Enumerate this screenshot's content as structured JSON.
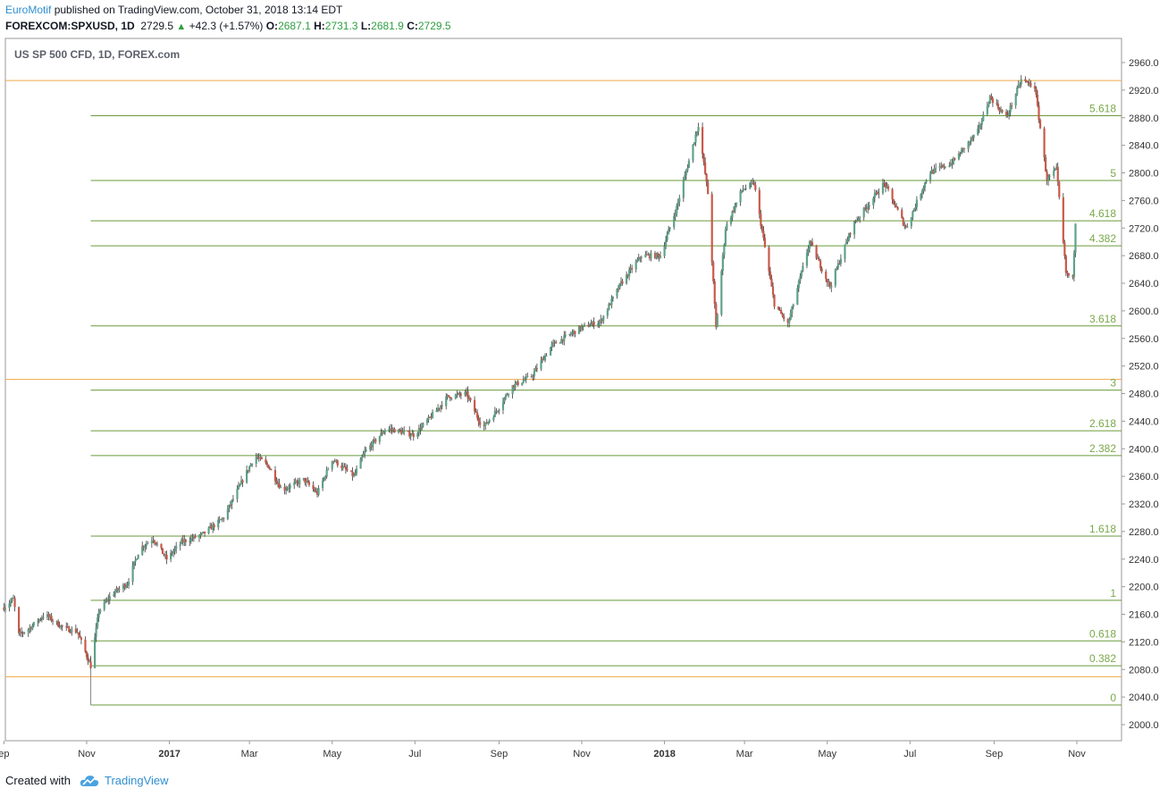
{
  "header": {
    "brand": "EuroMotif",
    "published_text": "published on TradingView.com, October 31, 2018 13:14 EDT"
  },
  "quote": {
    "symbol": "FOREXCOM:SPXUSD, 1D",
    "last": "2729.5",
    "change": "+42.3 (+1.57%)",
    "open_label": "O:",
    "open": "2687.1",
    "high_label": "H:",
    "high": "2731.3",
    "low_label": "L:",
    "low": "2681.9",
    "close_label": "C:",
    "close": "2729.5"
  },
  "footer": {
    "created_with": "Created with",
    "brand": "TradingView",
    "logo_icon": "tradingview-cloud-icon"
  },
  "colors": {
    "up": "#5fa289",
    "down": "#c85a4a",
    "fib": "#6a9a3c",
    "orange": "#f0a848",
    "axis": "#7d7d7d"
  },
  "chart_data": {
    "type": "candlestick",
    "title": "US SP 500 CFD, 1D, FOREX.com",
    "ylim": [
      1985,
      2980
    ],
    "y_ticks": [
      2000,
      2040,
      2080,
      2120,
      2160,
      2200,
      2240,
      2280,
      2320,
      2360,
      2400,
      2440,
      2480,
      2520,
      2560,
      2600,
      2640,
      2680,
      2720,
      2760,
      2800,
      2840,
      2880,
      2920,
      2960
    ],
    "x_ticks": [
      {
        "label": "ep",
        "date": "2016-09-01",
        "bold": false
      },
      {
        "label": "Nov",
        "date": "2016-11-01",
        "bold": false
      },
      {
        "label": "2017",
        "date": "2017-01-01",
        "bold": true
      },
      {
        "label": "Mar",
        "date": "2017-03-01",
        "bold": false
      },
      {
        "label": "May",
        "date": "2017-05-01",
        "bold": false
      },
      {
        "label": "Jul",
        "date": "2017-07-01",
        "bold": false
      },
      {
        "label": "Sep",
        "date": "2017-09-01",
        "bold": false
      },
      {
        "label": "Nov",
        "date": "2017-11-01",
        "bold": false
      },
      {
        "label": "2018",
        "date": "2018-01-01",
        "bold": true
      },
      {
        "label": "Mar",
        "date": "2018-03-01",
        "bold": false
      },
      {
        "label": "May",
        "date": "2018-05-01",
        "bold": false
      },
      {
        "label": "Jul",
        "date": "2018-07-01",
        "bold": false
      },
      {
        "label": "Sep",
        "date": "2018-09-01",
        "bold": false
      },
      {
        "label": "Nov",
        "date": "2018-11-01",
        "bold": false
      }
    ],
    "fib_levels": [
      {
        "label": "0",
        "value": 2028.5
      },
      {
        "label": "0.382",
        "value": 2085.3
      },
      {
        "label": "0.618",
        "value": 2121.4
      },
      {
        "label": "1",
        "value": 2180.2
      },
      {
        "label": "1.618",
        "value": 2273.4
      },
      {
        "label": "2.382",
        "value": 2390.1
      },
      {
        "label": "2.618",
        "value": 2426.1
      },
      {
        "label": "3",
        "value": 2485.0
      },
      {
        "label": "3.618",
        "value": 2578.1
      },
      {
        "label": "4.382",
        "value": 2694.3
      },
      {
        "label": "4.618",
        "value": 2730.6
      },
      {
        "label": "5",
        "value": 2789.0
      },
      {
        "label": "5.618",
        "value": 2882.9
      }
    ],
    "fib_start_date": "2016-11-04",
    "horizontal_lines": [
      2934.0,
      2500.5,
      2069.5
    ],
    "price_path": [
      [
        "2016-09-01",
        2170
      ],
      [
        "2016-09-08",
        2182
      ],
      [
        "2016-09-12",
        2130
      ],
      [
        "2016-09-20",
        2140
      ],
      [
        "2016-10-01",
        2160
      ],
      [
        "2016-10-15",
        2140
      ],
      [
        "2016-10-25",
        2135
      ],
      [
        "2016-11-04",
        2085
      ],
      [
        "2016-11-10",
        2165
      ],
      [
        "2016-11-20",
        2190
      ],
      [
        "2016-12-01",
        2205
      ],
      [
        "2016-12-10",
        2255
      ],
      [
        "2016-12-20",
        2270
      ],
      [
        "2016-12-30",
        2240
      ],
      [
        "2017-01-10",
        2265
      ],
      [
        "2017-01-25",
        2275
      ],
      [
        "2017-02-10",
        2300
      ],
      [
        "2017-02-28",
        2370
      ],
      [
        "2017-03-05",
        2390
      ],
      [
        "2017-03-15",
        2375
      ],
      [
        "2017-03-25",
        2340
      ],
      [
        "2017-04-10",
        2355
      ],
      [
        "2017-04-20",
        2335
      ],
      [
        "2017-05-01",
        2385
      ],
      [
        "2017-05-17",
        2360
      ],
      [
        "2017-05-25",
        2395
      ],
      [
        "2017-06-10",
        2430
      ],
      [
        "2017-06-30",
        2420
      ],
      [
        "2017-07-10",
        2440
      ],
      [
        "2017-07-25",
        2475
      ],
      [
        "2017-08-08",
        2480
      ],
      [
        "2017-08-20",
        2430
      ],
      [
        "2017-09-01",
        2460
      ],
      [
        "2017-09-10",
        2490
      ],
      [
        "2017-09-25",
        2505
      ],
      [
        "2017-10-10",
        2550
      ],
      [
        "2017-10-31",
        2575
      ],
      [
        "2017-11-15",
        2585
      ],
      [
        "2017-11-30",
        2640
      ],
      [
        "2017-12-15",
        2680
      ],
      [
        "2017-12-29",
        2680
      ],
      [
        "2018-01-10",
        2750
      ],
      [
        "2018-01-26",
        2870
      ],
      [
        "2018-02-02",
        2770
      ],
      [
        "2018-02-08",
        2575
      ],
      [
        "2018-02-15",
        2720
      ],
      [
        "2018-02-27",
        2775
      ],
      [
        "2018-03-08",
        2785
      ],
      [
        "2018-03-23",
        2610
      ],
      [
        "2018-04-02",
        2580
      ],
      [
        "2018-04-18",
        2700
      ],
      [
        "2018-05-03",
        2635
      ],
      [
        "2018-05-20",
        2725
      ],
      [
        "2018-06-12",
        2785
      ],
      [
        "2018-06-28",
        2720
      ],
      [
        "2018-07-15",
        2800
      ],
      [
        "2018-08-01",
        2815
      ],
      [
        "2018-08-20",
        2860
      ],
      [
        "2018-08-29",
        2910
      ],
      [
        "2018-09-10",
        2880
      ],
      [
        "2018-09-21",
        2935
      ],
      [
        "2018-10-01",
        2925
      ],
      [
        "2018-10-10",
        2790
      ],
      [
        "2018-10-17",
        2805
      ],
      [
        "2018-10-24",
        2655
      ],
      [
        "2018-10-29",
        2645
      ],
      [
        "2018-10-31",
        2729.5
      ]
    ]
  }
}
